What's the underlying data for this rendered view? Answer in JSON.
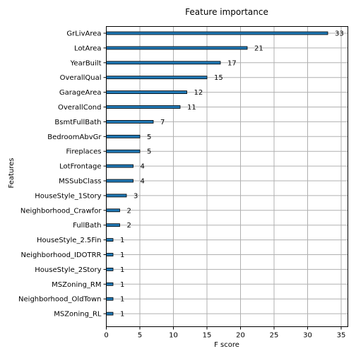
{
  "chart_data": {
    "type": "bar",
    "orientation": "horizontal",
    "title": "Feature importance",
    "xlabel": "F score",
    "ylabel": "Features",
    "xlim": [
      0,
      36
    ],
    "xticks": [
      0,
      5,
      10,
      15,
      20,
      25,
      30,
      35
    ],
    "grid": true,
    "categories": [
      "GrLivArea",
      "LotArea",
      "YearBuilt",
      "OverallQual",
      "GarageArea",
      "OverallCond",
      "BsmtFullBath",
      "BedroomAbvGr",
      "Fireplaces",
      "LotFrontage",
      "MSSubClass",
      "HouseStyle_1Story",
      "Neighborhood_Crawfor",
      "FullBath",
      "HouseStyle_2.5Fin",
      "Neighborhood_IDOTRR",
      "HouseStyle_2Story",
      "MSZoning_RM",
      "Neighborhood_OldTown",
      "MSZoning_RL"
    ],
    "values": [
      33,
      21,
      17,
      15,
      12,
      11,
      7,
      5,
      5,
      4,
      4,
      3,
      2,
      2,
      1,
      1,
      1,
      1,
      1,
      1
    ],
    "bar_color": "#1f77b4",
    "bar_edge_color": "#000000",
    "grid_color": "#b0b0b0"
  }
}
